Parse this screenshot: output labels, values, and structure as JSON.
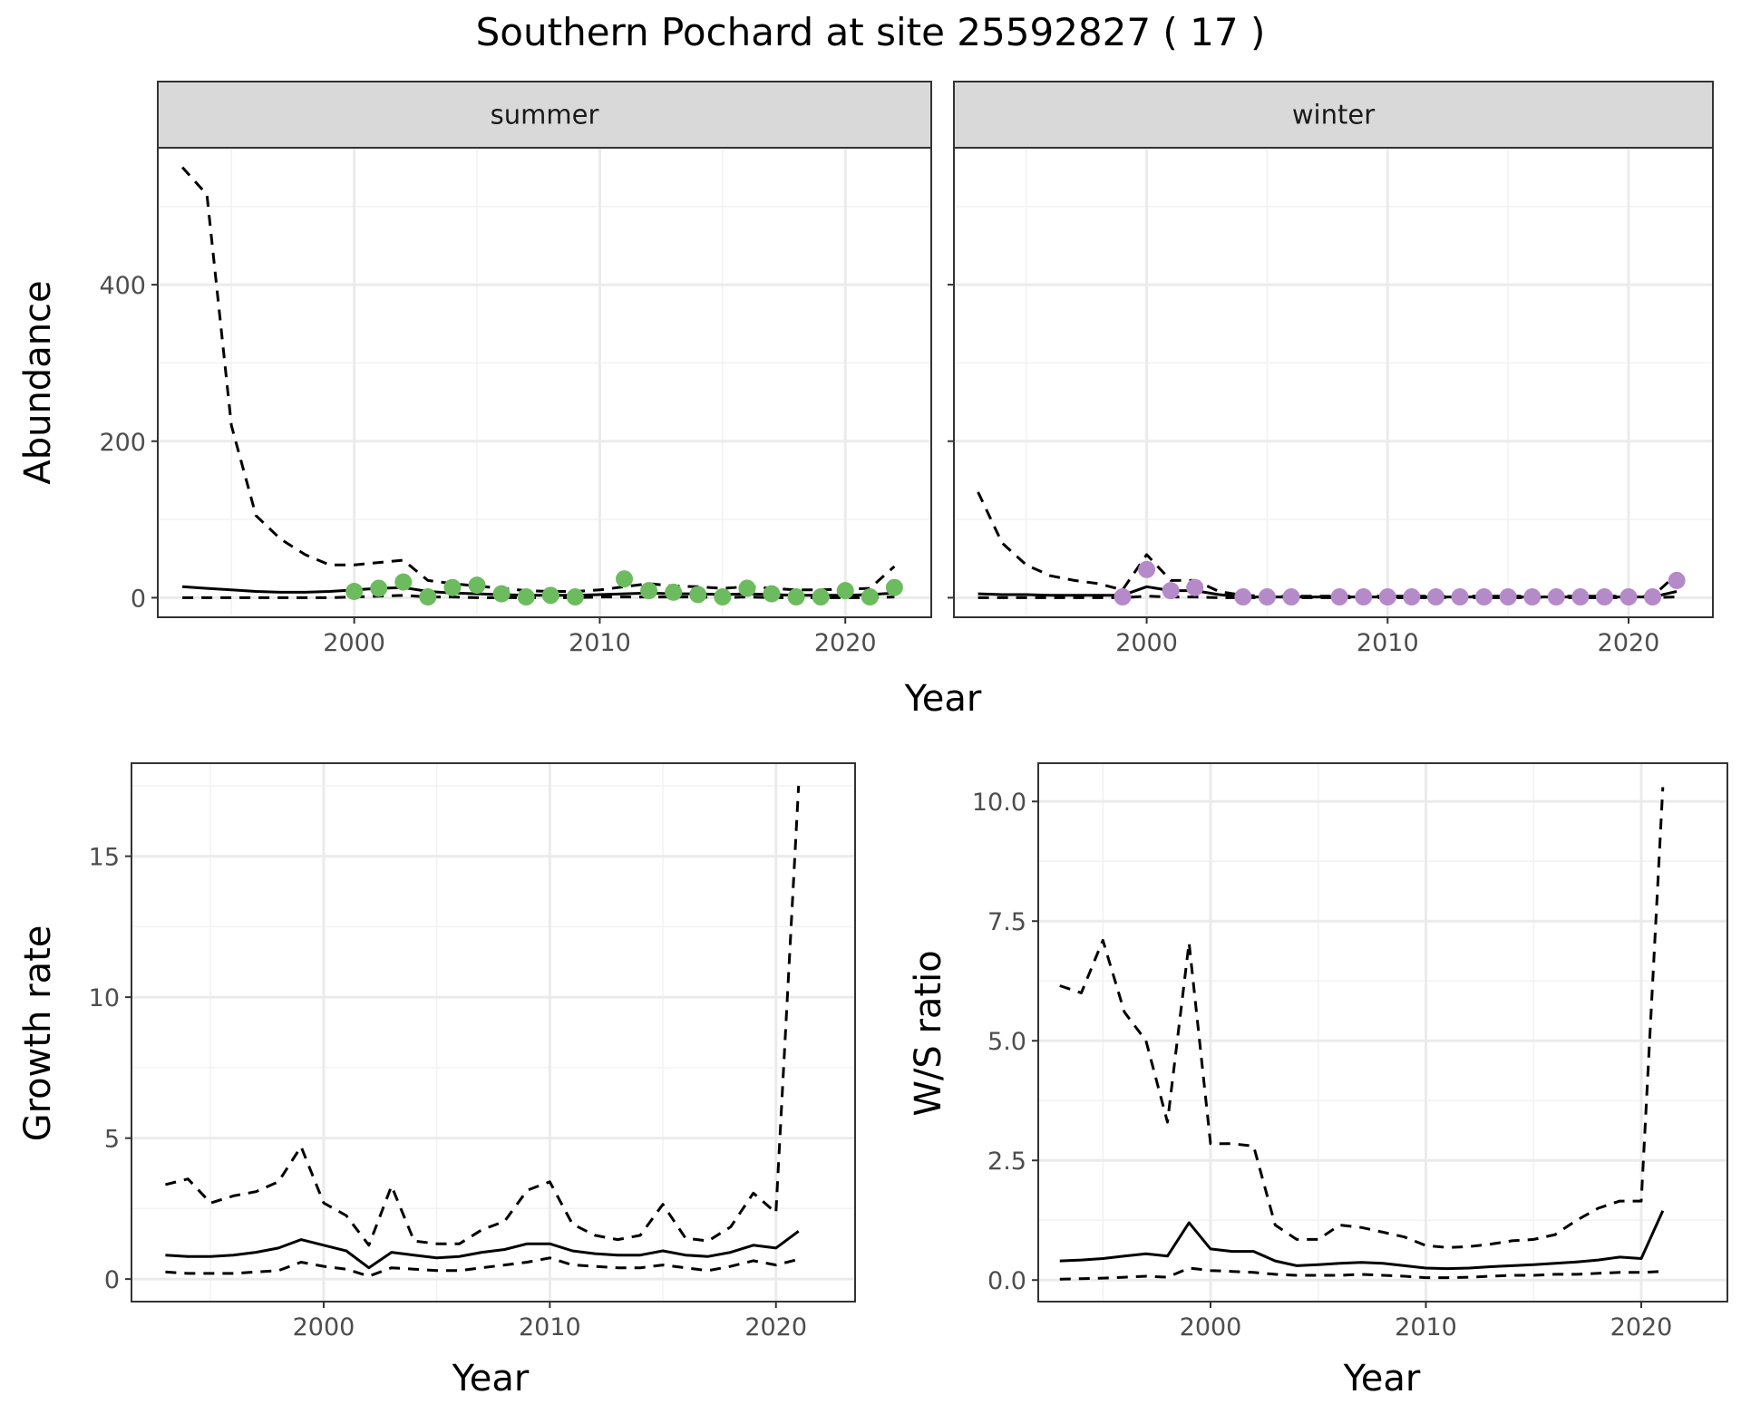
{
  "title": "Southern Pochard at site 25592827 ( 17 )",
  "chart_data": [
    {
      "type": "line",
      "facet": "summer",
      "xlabel": "Year",
      "ylabel": "Abundance",
      "xlim": [
        1992,
        2023.5
      ],
      "ylim": [
        -25,
        575
      ],
      "x_ticks": [
        2000,
        2010,
        2020
      ],
      "y_ticks": [
        0,
        200,
        400
      ],
      "point_color": "#6dbb5f",
      "series": [
        {
          "x": [
            1993,
            1994,
            1995,
            1996,
            1997,
            1998,
            1999,
            2000,
            2001,
            2002,
            2003,
            2004,
            2005,
            2006,
            2007,
            2008,
            2009,
            2010,
            2011,
            2012,
            2013,
            2014,
            2015,
            2016,
            2017,
            2018,
            2019,
            2020,
            2021,
            2022
          ],
          "y": [
            14,
            12,
            10,
            8,
            7,
            7,
            8,
            10,
            12,
            13,
            8,
            6,
            5,
            4,
            3,
            3,
            3,
            4,
            5,
            6,
            5,
            5,
            4,
            5,
            4,
            3,
            3,
            3,
            4,
            6
          ],
          "style": "solid"
        },
        {
          "x": [
            1993,
            1994,
            1995,
            1996,
            1997,
            1998,
            1999,
            2000,
            2001,
            2002,
            2003,
            2004,
            2005,
            2006,
            2007,
            2008,
            2009,
            2010,
            2011,
            2012,
            2013,
            2014,
            2015,
            2016,
            2017,
            2018,
            2019,
            2020,
            2021,
            2022
          ],
          "y": [
            550,
            515,
            220,
            105,
            75,
            55,
            42,
            42,
            45,
            48,
            22,
            18,
            15,
            12,
            9,
            8,
            8,
            10,
            14,
            18,
            15,
            14,
            12,
            14,
            12,
            10,
            10,
            11,
            12,
            40
          ],
          "style": "dashed"
        },
        {
          "x": [
            1993,
            1994,
            1995,
            1996,
            1997,
            1998,
            1999,
            2000,
            2001,
            2002,
            2003,
            2004,
            2005,
            2006,
            2007,
            2008,
            2009,
            2010,
            2011,
            2012,
            2013,
            2014,
            2015,
            2016,
            2017,
            2018,
            2019,
            2020,
            2021,
            2022
          ],
          "y": [
            0,
            0,
            0,
            0,
            0,
            0,
            0,
            1,
            2,
            3,
            1,
            1,
            0,
            0,
            0,
            0,
            0,
            1,
            1,
            1,
            1,
            1,
            0,
            1,
            0,
            0,
            0,
            0,
            0,
            1
          ],
          "style": "dashed"
        }
      ],
      "points": {
        "x": [
          2000,
          2001,
          2002,
          2003,
          2004,
          2005,
          2006,
          2007,
          2008,
          2009,
          2011,
          2012,
          2013,
          2014,
          2015,
          2016,
          2017,
          2018,
          2019,
          2020,
          2021,
          2022
        ],
        "y": [
          8,
          12,
          20,
          1,
          13,
          16,
          5,
          1,
          3,
          1,
          24,
          9,
          7,
          4,
          1,
          12,
          5,
          1,
          1,
          9,
          1,
          13
        ]
      }
    },
    {
      "type": "line",
      "facet": "winter",
      "xlabel": "Year",
      "ylabel": "Abundance",
      "xlim": [
        1992,
        2023.5
      ],
      "ylim": [
        -25,
        575
      ],
      "x_ticks": [
        2000,
        2010,
        2020
      ],
      "y_ticks": [
        0,
        200,
        400
      ],
      "point_color": "#b58ac9",
      "series": [
        {
          "x": [
            1993,
            1994,
            1995,
            1996,
            1997,
            1998,
            1999,
            2000,
            2001,
            2002,
            2003,
            2004,
            2005,
            2006,
            2007,
            2008,
            2009,
            2010,
            2011,
            2012,
            2013,
            2014,
            2015,
            2016,
            2017,
            2018,
            2019,
            2020,
            2021,
            2022
          ],
          "y": [
            5,
            4,
            4,
            3,
            3,
            3,
            3,
            14,
            9,
            9,
            4,
            1,
            1,
            1,
            1,
            1,
            1,
            1,
            1,
            1,
            1,
            1,
            1,
            1,
            1,
            1,
            1,
            1,
            1,
            8
          ],
          "style": "solid"
        },
        {
          "x": [
            1993,
            1994,
            1995,
            1996,
            1997,
            1998,
            1999,
            2000,
            2001,
            2002,
            2003,
            2004,
            2005,
            2006,
            2007,
            2008,
            2009,
            2010,
            2011,
            2012,
            2013,
            2014,
            2015,
            2016,
            2017,
            2018,
            2019,
            2020,
            2021,
            2022
          ],
          "y": [
            135,
            70,
            42,
            28,
            22,
            18,
            10,
            55,
            22,
            22,
            8,
            3,
            2,
            2,
            2,
            2,
            2,
            2,
            2,
            2,
            2,
            2,
            2,
            2,
            2,
            2,
            2,
            2,
            2,
            30
          ],
          "style": "dashed"
        },
        {
          "x": [
            1993,
            1994,
            1995,
            1996,
            1997,
            1998,
            1999,
            2000,
            2001,
            2002,
            2003,
            2004,
            2005,
            2006,
            2007,
            2008,
            2009,
            2010,
            2011,
            2012,
            2013,
            2014,
            2015,
            2016,
            2017,
            2018,
            2019,
            2020,
            2021,
            2022
          ],
          "y": [
            0,
            0,
            0,
            0,
            0,
            0,
            0,
            2,
            1,
            1,
            0,
            0,
            0,
            0,
            0,
            0,
            0,
            0,
            0,
            0,
            0,
            0,
            0,
            0,
            0,
            0,
            0,
            0,
            0,
            1
          ],
          "style": "dashed"
        }
      ],
      "points": {
        "x": [
          1999,
          2000,
          2001,
          2002,
          2004,
          2005,
          2006,
          2008,
          2009,
          2010,
          2011,
          2012,
          2013,
          2014,
          2015,
          2016,
          2017,
          2018,
          2019,
          2020,
          2021,
          2022
        ],
        "y": [
          1,
          36,
          9,
          13,
          1,
          1,
          1,
          1,
          1,
          1,
          1,
          1,
          1,
          1,
          1,
          1,
          1,
          1,
          1,
          1,
          1,
          22
        ]
      }
    },
    {
      "type": "line",
      "xlabel": "Year",
      "ylabel": "Growth rate",
      "xlim": [
        1991.5,
        2023.5
      ],
      "ylim": [
        -0.8,
        18.3
      ],
      "x_ticks": [
        2000,
        2010,
        2020
      ],
      "y_ticks": [
        0,
        5,
        10,
        15
      ],
      "series": [
        {
          "x": [
            1993,
            1994,
            1995,
            1996,
            1997,
            1998,
            1999,
            2000,
            2001,
            2002,
            2003,
            2004,
            2005,
            2006,
            2007,
            2008,
            2009,
            2010,
            2011,
            2012,
            2013,
            2014,
            2015,
            2016,
            2017,
            2018,
            2019,
            2020,
            2021
          ],
          "y": [
            0.85,
            0.8,
            0.8,
            0.85,
            0.95,
            1.1,
            1.4,
            1.2,
            1.0,
            0.4,
            0.95,
            0.85,
            0.75,
            0.8,
            0.95,
            1.05,
            1.25,
            1.25,
            1.0,
            0.9,
            0.85,
            0.85,
            1.0,
            0.85,
            0.8,
            0.95,
            1.2,
            1.1,
            1.7
          ],
          "style": "solid"
        },
        {
          "x": [
            1993,
            1994,
            1995,
            1996,
            1997,
            1998,
            1999,
            2000,
            2001,
            2002,
            2003,
            2004,
            2005,
            2006,
            2007,
            2008,
            2009,
            2010,
            2011,
            2012,
            2013,
            2014,
            2015,
            2016,
            2017,
            2018,
            2019,
            2020,
            2021
          ],
          "y": [
            3.35,
            3.55,
            2.7,
            2.95,
            3.1,
            3.45,
            4.7,
            2.7,
            2.25,
            1.2,
            3.3,
            1.35,
            1.25,
            1.25,
            1.75,
            2.05,
            3.15,
            3.45,
            1.95,
            1.55,
            1.4,
            1.55,
            2.65,
            1.45,
            1.35,
            1.85,
            3.05,
            2.35,
            17.5
          ],
          "style": "dashed"
        },
        {
          "x": [
            1993,
            1994,
            1995,
            1996,
            1997,
            1998,
            1999,
            2000,
            2001,
            2002,
            2003,
            2004,
            2005,
            2006,
            2007,
            2008,
            2009,
            2010,
            2011,
            2012,
            2013,
            2014,
            2015,
            2016,
            2017,
            2018,
            2019,
            2020,
            2021
          ],
          "y": [
            0.25,
            0.2,
            0.2,
            0.2,
            0.25,
            0.3,
            0.6,
            0.45,
            0.35,
            0.1,
            0.4,
            0.35,
            0.3,
            0.3,
            0.4,
            0.5,
            0.6,
            0.75,
            0.5,
            0.45,
            0.4,
            0.4,
            0.5,
            0.4,
            0.3,
            0.45,
            0.65,
            0.5,
            0.7
          ],
          "style": "dashed"
        }
      ]
    },
    {
      "type": "line",
      "xlabel": "Year",
      "ylabel": "W/S ratio",
      "xlim": [
        1992,
        2024
      ],
      "ylim": [
        -0.45,
        10.8
      ],
      "x_ticks": [
        2000,
        2010,
        2020
      ],
      "y_ticks": [
        0,
        2.5,
        5,
        7.5,
        10
      ],
      "y_tick_labels": [
        "0.0",
        "2.5",
        "5.0",
        "7.5",
        "10.0"
      ],
      "series": [
        {
          "x": [
            1993,
            1994,
            1995,
            1996,
            1997,
            1998,
            1999,
            2000,
            2001,
            2002,
            2003,
            2004,
            2005,
            2006,
            2007,
            2008,
            2009,
            2010,
            2011,
            2012,
            2013,
            2014,
            2015,
            2016,
            2017,
            2018,
            2019,
            2020,
            2021
          ],
          "y": [
            0.4,
            0.42,
            0.45,
            0.5,
            0.55,
            0.5,
            1.2,
            0.65,
            0.6,
            0.6,
            0.4,
            0.3,
            0.32,
            0.35,
            0.37,
            0.35,
            0.3,
            0.25,
            0.24,
            0.25,
            0.28,
            0.3,
            0.32,
            0.35,
            0.38,
            0.42,
            0.48,
            0.45,
            1.45
          ],
          "style": "solid"
        },
        {
          "x": [
            1993,
            1994,
            1995,
            1996,
            1997,
            1998,
            1999,
            2000,
            2001,
            2002,
            2003,
            2004,
            2005,
            2006,
            2007,
            2008,
            2009,
            2010,
            2011,
            2012,
            2013,
            2014,
            2015,
            2016,
            2017,
            2018,
            2019,
            2020,
            2021
          ],
          "y": [
            6.15,
            6.0,
            7.1,
            5.6,
            5.0,
            3.3,
            7.05,
            2.85,
            2.85,
            2.8,
            1.15,
            0.85,
            0.85,
            1.15,
            1.1,
            1.0,
            0.9,
            0.72,
            0.68,
            0.7,
            0.75,
            0.82,
            0.85,
            0.95,
            1.25,
            1.5,
            1.65,
            1.65,
            10.3
          ],
          "style": "dashed"
        },
        {
          "x": [
            1993,
            1994,
            1995,
            1996,
            1997,
            1998,
            1999,
            2000,
            2001,
            2002,
            2003,
            2004,
            2005,
            2006,
            2007,
            2008,
            2009,
            2010,
            2011,
            2012,
            2013,
            2014,
            2015,
            2016,
            2017,
            2018,
            2019,
            2020,
            2021
          ],
          "y": [
            0.02,
            0.03,
            0.04,
            0.06,
            0.08,
            0.06,
            0.25,
            0.2,
            0.18,
            0.16,
            0.12,
            0.1,
            0.1,
            0.1,
            0.12,
            0.1,
            0.08,
            0.05,
            0.05,
            0.06,
            0.08,
            0.1,
            0.1,
            0.12,
            0.12,
            0.14,
            0.16,
            0.16,
            0.18
          ],
          "style": "dashed"
        }
      ]
    }
  ]
}
